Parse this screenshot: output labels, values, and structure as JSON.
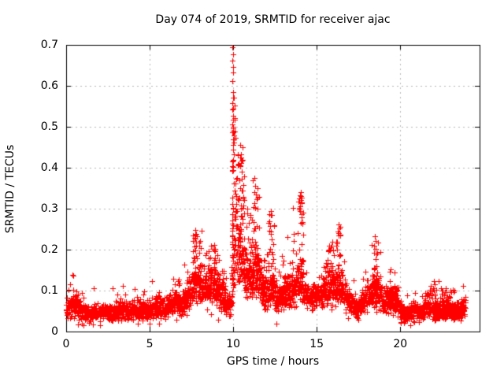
{
  "chart_data": {
    "type": "scatter",
    "title": "Day 074 of 2019, SRMTID for receiver ajac",
    "xlabel": "GPS time / hours",
    "ylabel": "SRMTID / TECUs",
    "xlim": [
      0,
      24.75
    ],
    "ylim": [
      0,
      0.7
    ],
    "xticks": {
      "values": [
        0,
        5,
        10,
        15,
        20
      ],
      "labels": [
        "0",
        "5",
        "10",
        "15",
        "20"
      ]
    },
    "yticks": {
      "values": [
        0,
        0.1,
        0.2,
        0.3,
        0.4,
        0.5,
        0.6,
        0.7
      ],
      "labels": [
        "0",
        "0.1",
        "0.2",
        "0.3",
        "0.4",
        "0.5",
        "0.6",
        "0.7"
      ]
    },
    "grid": {
      "show": true,
      "color": "#b8b8b8",
      "style": "dotted"
    },
    "border_color": "#000000",
    "background": "#ffffff",
    "seed": 74,
    "series": [
      {
        "name": "SRMTID",
        "marker": "+",
        "marker_size": 7,
        "color": "#ff0000",
        "sample_interval_hours": 0.008333,
        "x_range_data": [
          0.004,
          23.92
        ],
        "band_keyframes": [
          [
            0,
            0.052
          ],
          [
            0.3,
            0.06
          ],
          [
            0.55,
            0.068
          ],
          [
            0.8,
            0.052
          ],
          [
            1.2,
            0.042
          ],
          [
            1.6,
            0.048
          ],
          [
            2.0,
            0.044
          ],
          [
            2.4,
            0.048
          ],
          [
            2.8,
            0.044
          ],
          [
            3.2,
            0.052
          ],
          [
            3.6,
            0.048
          ],
          [
            4.0,
            0.052
          ],
          [
            4.4,
            0.056
          ],
          [
            4.8,
            0.05
          ],
          [
            5.2,
            0.058
          ],
          [
            5.5,
            0.066
          ],
          [
            5.8,
            0.056
          ],
          [
            6.2,
            0.062
          ],
          [
            6.6,
            0.075
          ],
          [
            6.9,
            0.068
          ],
          [
            7.2,
            0.08
          ],
          [
            7.55,
            0.11
          ],
          [
            7.8,
            0.135
          ],
          [
            8.05,
            0.115
          ],
          [
            8.35,
            0.105
          ],
          [
            8.6,
            0.115
          ],
          [
            8.9,
            0.125
          ],
          [
            9.1,
            0.095
          ],
          [
            9.35,
            0.085
          ],
          [
            9.6,
            0.058
          ],
          [
            9.85,
            0.07
          ],
          [
            10.0,
            0.19
          ],
          [
            10.15,
            0.21
          ],
          [
            10.35,
            0.22
          ],
          [
            10.55,
            0.19
          ],
          [
            10.75,
            0.14
          ],
          [
            10.95,
            0.12
          ],
          [
            11.15,
            0.15
          ],
          [
            11.35,
            0.165
          ],
          [
            11.55,
            0.13
          ],
          [
            11.75,
            0.1
          ],
          [
            11.95,
            0.095
          ],
          [
            12.15,
            0.115
          ],
          [
            12.35,
            0.12
          ],
          [
            12.55,
            0.085
          ],
          [
            12.75,
            0.08
          ],
          [
            12.95,
            0.09
          ],
          [
            13.15,
            0.1
          ],
          [
            13.35,
            0.09
          ],
          [
            13.55,
            0.1
          ],
          [
            13.75,
            0.105
          ],
          [
            13.95,
            0.125
          ],
          [
            14.15,
            0.11
          ],
          [
            14.4,
            0.085
          ],
          [
            14.7,
            0.08
          ],
          [
            15.0,
            0.09
          ],
          [
            15.3,
            0.095
          ],
          [
            15.6,
            0.105
          ],
          [
            15.9,
            0.115
          ],
          [
            16.1,
            0.1
          ],
          [
            16.35,
            0.115
          ],
          [
            16.6,
            0.095
          ],
          [
            16.85,
            0.08
          ],
          [
            17.1,
            0.065
          ],
          [
            17.35,
            0.055
          ],
          [
            17.6,
            0.065
          ],
          [
            17.85,
            0.08
          ],
          [
            18.1,
            0.085
          ],
          [
            18.45,
            0.105
          ],
          [
            18.7,
            0.09
          ],
          [
            18.95,
            0.075
          ],
          [
            19.2,
            0.07
          ],
          [
            19.5,
            0.082
          ],
          [
            19.75,
            0.075
          ],
          [
            20.0,
            0.05
          ],
          [
            20.3,
            0.038
          ],
          [
            20.6,
            0.045
          ],
          [
            20.9,
            0.052
          ],
          [
            21.2,
            0.048
          ],
          [
            21.5,
            0.058
          ],
          [
            21.8,
            0.062
          ],
          [
            22.1,
            0.055
          ],
          [
            22.4,
            0.05
          ],
          [
            22.7,
            0.052
          ],
          [
            23.0,
            0.048
          ],
          [
            23.3,
            0.05
          ],
          [
            23.6,
            0.055
          ],
          [
            23.92,
            0.06
          ]
        ],
        "band_noise": {
          "rel": 0.52,
          "abs": 0.012,
          "outlier_prob": 0.03,
          "outlier_gain": 1.45,
          "low_outlier_prob": 0.012,
          "low_outlier_gain": 0.45,
          "min_value": 0.008
        },
        "clusters": [
          {
            "h0": 7.55,
            "h1": 8.2,
            "v0": 0.09,
            "v1": 0.255,
            "n": 45,
            "bias": 1.7
          },
          {
            "h0": 8.3,
            "h1": 9.2,
            "v0": 0.08,
            "v1": 0.21,
            "n": 55,
            "bias": 1.6
          },
          {
            "h0": 9.3,
            "h1": 9.55,
            "v0": 0.07,
            "v1": 0.148,
            "n": 14,
            "bias": 1.4
          },
          {
            "h0": 9.94,
            "h1": 10.02,
            "v0": 0.09,
            "v1": 0.58,
            "n": 38,
            "bias": 1.15
          },
          {
            "h0": 10.02,
            "h1": 10.17,
            "v0": 0.15,
            "v1": 0.52,
            "n": 14,
            "bias": 1.3
          },
          {
            "h0": 10.25,
            "h1": 10.68,
            "v0": 0.12,
            "v1": 0.45,
            "n": 48,
            "bias": 1.5
          },
          {
            "h0": 10.7,
            "h1": 11.05,
            "v0": 0.09,
            "v1": 0.3,
            "n": 26,
            "bias": 1.5
          },
          {
            "h0": 11.1,
            "h1": 11.58,
            "v0": 0.1,
            "v1": 0.375,
            "n": 42,
            "bias": 1.5
          },
          {
            "h0": 11.6,
            "h1": 12.0,
            "v0": 0.07,
            "v1": 0.18,
            "n": 20,
            "bias": 1.4
          },
          {
            "h0": 12.08,
            "h1": 12.5,
            "v0": 0.08,
            "v1": 0.295,
            "n": 32,
            "bias": 1.6
          },
          {
            "h0": 12.9,
            "h1": 13.4,
            "v0": 0.07,
            "v1": 0.195,
            "n": 26,
            "bias": 1.5
          },
          {
            "h0": 13.5,
            "h1": 13.78,
            "v0": 0.08,
            "v1": 0.24,
            "n": 18,
            "bias": 1.5
          },
          {
            "h0": 13.88,
            "h1": 14.22,
            "v0": 0.1,
            "v1": 0.335,
            "n": 30,
            "bias": 1.5
          },
          {
            "h0": 15.4,
            "h1": 16.08,
            "v0": 0.08,
            "v1": 0.215,
            "n": 36,
            "bias": 1.5
          },
          {
            "h0": 16.12,
            "h1": 16.5,
            "v0": 0.09,
            "v1": 0.258,
            "n": 26,
            "bias": 1.5
          },
          {
            "h0": 18.28,
            "h1": 18.72,
            "v0": 0.07,
            "v1": 0.228,
            "n": 28,
            "bias": 1.5
          },
          {
            "h0": 19.35,
            "h1": 19.85,
            "v0": 0.06,
            "v1": 0.152,
            "n": 18,
            "bias": 1.4
          },
          {
            "h0": 21.45,
            "h1": 22.15,
            "v0": 0.05,
            "v1": 0.122,
            "n": 22,
            "bias": 1.4
          },
          {
            "h0": 22.35,
            "h1": 23.35,
            "v0": 0.035,
            "v1": 0.105,
            "n": 55,
            "bias": 1.2
          },
          {
            "h0": 6.5,
            "h1": 7.15,
            "v0": 0.06,
            "v1": 0.128,
            "n": 18,
            "bias": 1.4
          },
          {
            "h0": 5.35,
            "h1": 5.7,
            "v0": 0.05,
            "v1": 0.102,
            "n": 10,
            "bias": 1.3
          },
          {
            "h0": 0.35,
            "h1": 0.72,
            "v0": 0.05,
            "v1": 0.105,
            "n": 10,
            "bias": 1.3
          },
          {
            "h0": 2.9,
            "h1": 3.25,
            "v0": 0.04,
            "v1": 0.092,
            "n": 8,
            "bias": 1.3
          }
        ],
        "peak_points": [
          [
            9.97,
            0.695
          ],
          [
            9.985,
            0.676
          ],
          [
            9.96,
            0.661
          ],
          [
            9.975,
            0.647
          ],
          [
            9.99,
            0.632
          ],
          [
            9.965,
            0.612
          ],
          [
            9.995,
            0.585
          ],
          [
            10.06,
            0.571
          ],
          [
            9.97,
            0.558
          ],
          [
            10.08,
            0.552
          ],
          [
            9.985,
            0.545
          ],
          [
            10.0,
            0.527
          ],
          [
            10.07,
            0.522
          ],
          [
            10.09,
            0.518
          ],
          [
            9.96,
            0.505
          ],
          [
            9.975,
            0.5
          ],
          [
            9.99,
            0.497
          ],
          [
            10.005,
            0.49
          ],
          [
            9.965,
            0.487
          ],
          [
            10.02,
            0.47
          ],
          [
            9.98,
            0.455
          ],
          [
            10.0,
            0.445
          ],
          [
            10.03,
            0.432
          ],
          [
            9.99,
            0.418
          ],
          [
            10.01,
            0.402
          ],
          [
            9.97,
            0.395
          ],
          [
            10.44,
            0.455
          ],
          [
            10.47,
            0.432
          ],
          [
            10.41,
            0.405
          ],
          [
            10.52,
            0.39
          ],
          [
            10.35,
            0.37
          ],
          [
            10.3,
            0.43
          ],
          [
            10.33,
            0.41
          ],
          [
            10.58,
            0.345
          ],
          [
            10.62,
            0.325
          ],
          [
            11.28,
            0.375
          ],
          [
            11.32,
            0.356
          ],
          [
            11.25,
            0.34
          ],
          [
            11.45,
            0.3
          ],
          [
            13.6,
            0.302
          ],
          [
            14.04,
            0.34
          ],
          [
            14.06,
            0.33
          ],
          [
            14.05,
            0.322
          ],
          [
            14.08,
            0.315
          ],
          [
            13.97,
            0.302
          ],
          [
            13.99,
            0.295
          ],
          [
            14.1,
            0.287
          ],
          [
            12.28,
            0.295
          ],
          [
            12.32,
            0.284
          ],
          [
            12.18,
            0.27
          ],
          [
            16.3,
            0.262
          ],
          [
            16.34,
            0.251
          ],
          [
            16.27,
            0.244
          ],
          [
            7.72,
            0.248
          ],
          [
            7.76,
            0.238
          ],
          [
            7.69,
            0.228
          ],
          [
            7.8,
            0.218
          ],
          [
            18.47,
            0.232
          ],
          [
            18.51,
            0.222
          ],
          [
            18.44,
            0.21
          ],
          [
            8.88,
            0.212
          ],
          [
            8.92,
            0.202
          ],
          [
            15.92,
            0.22
          ],
          [
            15.88,
            0.21
          ],
          [
            9.42,
            0.148
          ]
        ]
      }
    ]
  }
}
